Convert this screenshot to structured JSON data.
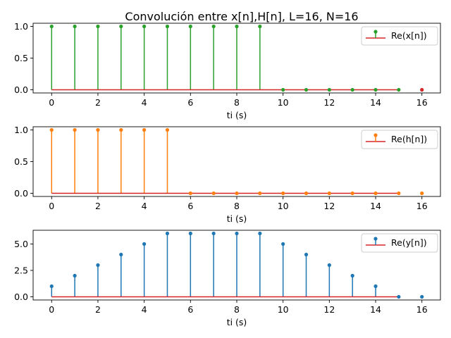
{
  "chart_data": {
    "title": "Convolución entre x[n],H[n], L=16, N=16",
    "subplots": [
      {
        "type": "stem",
        "xlabel": "ti (s)",
        "xlim": [
          -0.8,
          16.8
        ],
        "ylim": [
          -0.05,
          1.05
        ],
        "xticks": [
          "0",
          "2",
          "4",
          "6",
          "8",
          "10",
          "12",
          "14",
          "16"
        ],
        "yticks": [
          "0.0",
          "0.5",
          "1.0"
        ],
        "ytick_values": [
          0,
          0.5,
          1.0
        ],
        "grid": false,
        "legend_position": "top-right",
        "series": [
          {
            "name": "Re(x[n])",
            "color": "#2ca02c",
            "baseline_color": "#d62728",
            "x": [
              0,
              1,
              2,
              3,
              4,
              5,
              6,
              7,
              8,
              9,
              10,
              11,
              12,
              13,
              14,
              15
            ],
            "values": [
              1,
              1,
              1,
              1,
              1,
              1,
              1,
              1,
              1,
              1,
              0,
              0,
              0,
              0,
              0,
              0
            ]
          }
        ],
        "extra_points": [
          {
            "x": 16,
            "y": 0,
            "color": "#d62728"
          }
        ]
      },
      {
        "type": "stem",
        "xlabel": "ti (s)",
        "xlim": [
          -0.8,
          16.8
        ],
        "ylim": [
          -0.05,
          1.05
        ],
        "xticks": [
          "0",
          "2",
          "4",
          "6",
          "8",
          "10",
          "12",
          "14",
          "16"
        ],
        "yticks": [
          "0.0",
          "0.5",
          "1.0"
        ],
        "ytick_values": [
          0,
          0.5,
          1.0
        ],
        "grid": false,
        "legend_position": "top-right",
        "series": [
          {
            "name": "Re(h[n])",
            "color": "#ff7f0e",
            "baseline_color": "#d62728",
            "x": [
              0,
              1,
              2,
              3,
              4,
              5,
              6,
              7,
              8,
              9,
              10,
              11,
              12,
              13,
              14,
              15
            ],
            "values": [
              1,
              1,
              1,
              1,
              1,
              1,
              0,
              0,
              0,
              0,
              0,
              0,
              0,
              0,
              0,
              0
            ]
          }
        ],
        "extra_points": [
          {
            "x": 16,
            "y": 0,
            "color": "#ff7f0e"
          }
        ]
      },
      {
        "type": "stem",
        "xlabel": "ti (s)",
        "xlim": [
          -0.8,
          16.8
        ],
        "ylim": [
          -0.3,
          6.3
        ],
        "xticks": [
          "0",
          "2",
          "4",
          "6",
          "8",
          "10",
          "12",
          "14",
          "16"
        ],
        "yticks": [
          "0.0",
          "2.5",
          "5.0"
        ],
        "ytick_values": [
          0,
          2.5,
          5.0
        ],
        "grid": false,
        "legend_position": "top-right",
        "series": [
          {
            "name": "Re(y[n])",
            "color": "#1f77b4",
            "baseline_color": "#d62728",
            "x": [
              0,
              1,
              2,
              3,
              4,
              5,
              6,
              7,
              8,
              9,
              10,
              11,
              12,
              13,
              14,
              15
            ],
            "values": [
              1,
              2,
              3,
              4,
              5,
              6,
              6,
              6,
              6,
              6,
              5,
              4,
              3,
              2,
              1,
              0
            ]
          }
        ],
        "extra_points": [
          {
            "x": 16,
            "y": 0,
            "color": "#1f77b4"
          }
        ]
      }
    ]
  }
}
